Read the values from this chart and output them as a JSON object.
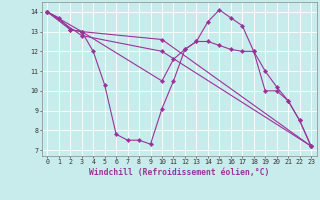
{
  "xlabel": "Windchill (Refroidissement éolien,°C)",
  "xlim": [
    -0.5,
    23.5
  ],
  "ylim": [
    6.7,
    14.5
  ],
  "yticks": [
    7,
    8,
    9,
    10,
    11,
    12,
    13,
    14
  ],
  "xticks": [
    0,
    1,
    2,
    3,
    4,
    5,
    6,
    7,
    8,
    9,
    10,
    11,
    12,
    13,
    14,
    15,
    16,
    17,
    18,
    19,
    20,
    21,
    22,
    23
  ],
  "background_color": "#c8ecec",
  "grid_color": "#ffffff",
  "line_color": "#993399",
  "lines": [
    {
      "x": [
        0,
        1,
        2,
        3,
        10,
        11,
        12,
        13,
        14,
        15,
        16,
        17,
        18,
        19,
        20,
        21,
        22,
        23
      ],
      "y": [
        14.0,
        13.7,
        13.1,
        13.0,
        10.5,
        11.6,
        12.1,
        12.5,
        13.5,
        14.1,
        13.7,
        13.3,
        12.0,
        11.0,
        10.2,
        9.5,
        8.5,
        7.2
      ]
    },
    {
      "x": [
        0,
        2,
        3,
        4,
        5,
        6,
        7,
        8,
        9,
        10,
        11,
        12,
        13,
        14,
        15,
        16,
        17,
        18,
        19,
        20,
        21,
        22,
        23
      ],
      "y": [
        14.0,
        13.1,
        13.0,
        12.0,
        10.3,
        7.8,
        7.5,
        7.5,
        7.3,
        9.1,
        10.5,
        12.1,
        12.5,
        12.5,
        12.3,
        12.1,
        12.0,
        12.0,
        10.0,
        10.0,
        9.5,
        8.5,
        7.2
      ]
    },
    {
      "x": [
        0,
        3,
        10,
        23
      ],
      "y": [
        14.0,
        13.0,
        12.6,
        7.2
      ]
    },
    {
      "x": [
        0,
        3,
        10,
        23
      ],
      "y": [
        14.0,
        12.8,
        12.0,
        7.2
      ]
    }
  ],
  "marker": "D",
  "markersize": 2.2,
  "linewidth": 0.8,
  "tick_fontsize": 4.8,
  "label_fontsize": 5.8
}
